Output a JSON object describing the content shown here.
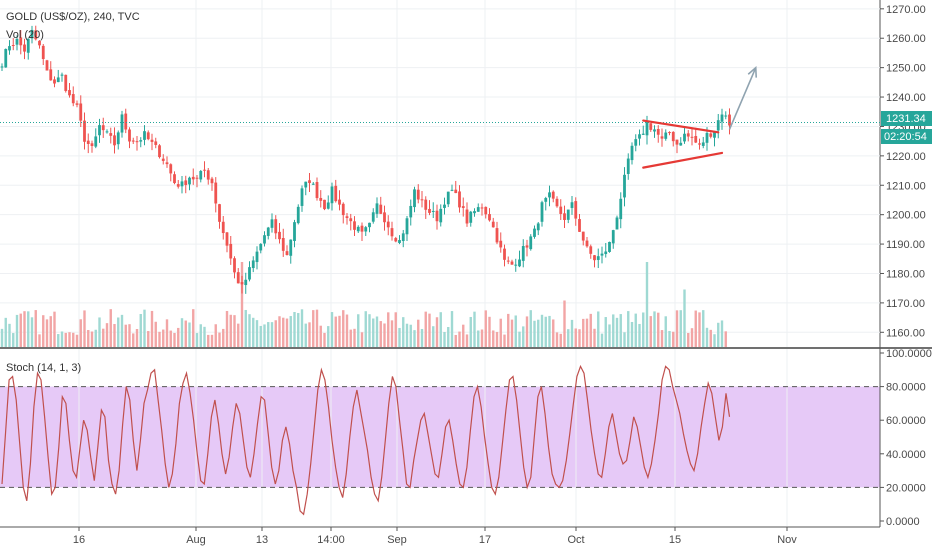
{
  "chart_data": [
    {
      "type": "candlestick",
      "title": "GOLD (US$/OZ), 240, TVC",
      "volume_label": "Vol (20)",
      "price_axis_ticks": [
        "1270.00",
        "1260.00",
        "1250.00",
        "1240.00",
        "1230.00",
        "1220.00",
        "1210.00",
        "1200.00",
        "1190.00",
        "1180.00",
        "1170.00",
        "1160.00"
      ],
      "ylim": [
        1155,
        1273
      ],
      "last_price": "1231.34",
      "countdown": "02:20:54",
      "x_tick_labels": [
        "16",
        "Aug",
        "13",
        "14:00",
        "Sep",
        "17",
        "Oct",
        "15",
        "Nov"
      ],
      "close_path_anchors": [
        [
          0,
          1252
        ],
        [
          2,
          1258
        ],
        [
          4,
          1259
        ],
        [
          6,
          1256
        ],
        [
          8,
          1262
        ],
        [
          10,
          1257
        ],
        [
          12,
          1248
        ],
        [
          14,
          1245
        ],
        [
          16,
          1247
        ],
        [
          18,
          1240
        ],
        [
          20,
          1236
        ],
        [
          22,
          1226
        ],
        [
          24,
          1222
        ],
        [
          26,
          1230
        ],
        [
          28,
          1227
        ],
        [
          30,
          1224
        ],
        [
          32,
          1233
        ],
        [
          34,
          1226
        ],
        [
          36,
          1225
        ],
        [
          38,
          1227
        ],
        [
          40,
          1224
        ],
        [
          42,
          1221
        ],
        [
          44,
          1217
        ],
        [
          46,
          1211
        ],
        [
          48,
          1210
        ],
        [
          50,
          1213
        ],
        [
          52,
          1212
        ],
        [
          54,
          1215
        ],
        [
          56,
          1211
        ],
        [
          58,
          1198
        ],
        [
          60,
          1190
        ],
        [
          62,
          1180
        ],
        [
          64,
          1175
        ],
        [
          66,
          1181
        ],
        [
          68,
          1187
        ],
        [
          70,
          1193
        ],
        [
          72,
          1197
        ],
        [
          74,
          1191
        ],
        [
          76,
          1186
        ],
        [
          78,
          1198
        ],
        [
          80,
          1208
        ],
        [
          82,
          1212
        ],
        [
          84,
          1207
        ],
        [
          86,
          1203
        ],
        [
          88,
          1208
        ],
        [
          90,
          1203
        ],
        [
          92,
          1199
        ],
        [
          94,
          1196
        ],
        [
          96,
          1193
        ],
        [
          98,
          1196
        ],
        [
          100,
          1203
        ],
        [
          102,
          1199
        ],
        [
          104,
          1194
        ],
        [
          106,
          1191
        ],
        [
          108,
          1198
        ],
        [
          110,
          1208
        ],
        [
          112,
          1204
        ],
        [
          114,
          1201
        ],
        [
          116,
          1199
        ],
        [
          118,
          1205
        ],
        [
          120,
          1208
        ],
        [
          122,
          1204
        ],
        [
          124,
          1198
        ],
        [
          126,
          1201
        ],
        [
          128,
          1203
        ],
        [
          130,
          1199
        ],
        [
          132,
          1192
        ],
        [
          134,
          1184
        ],
        [
          136,
          1183
        ],
        [
          138,
          1186
        ],
        [
          140,
          1190
        ],
        [
          142,
          1194
        ],
        [
          144,
          1203
        ],
        [
          146,
          1206
        ],
        [
          148,
          1202
        ],
        [
          150,
          1199
        ],
        [
          152,
          1203
        ],
        [
          154,
          1195
        ],
        [
          156,
          1188
        ],
        [
          158,
          1185
        ],
        [
          160,
          1186
        ],
        [
          162,
          1190
        ],
        [
          164,
          1200
        ],
        [
          166,
          1212
        ],
        [
          168,
          1223
        ],
        [
          170,
          1226
        ],
        [
          172,
          1231
        ],
        [
          174,
          1229
        ],
        [
          176,
          1225
        ],
        [
          178,
          1228
        ],
        [
          180,
          1224
        ],
        [
          182,
          1227
        ],
        [
          184,
          1226
        ],
        [
          186,
          1223
        ],
        [
          188,
          1227
        ],
        [
          190,
          1229
        ],
        [
          192,
          1235
        ],
        [
          194,
          1231
        ]
      ],
      "pattern": {
        "type": "symmetrical triangle",
        "upper_line": [
          [
            171,
            1232
          ],
          [
            191,
            1228
          ]
        ],
        "lower_line": [
          [
            171,
            1216
          ],
          [
            192,
            1221
          ]
        ],
        "projection_arrow": [
          [
            194,
            1229
          ],
          [
            201,
            1250
          ]
        ]
      },
      "volume_series": "bars under price, colored by candle direction",
      "volume_spikes": [
        [
          64,
          1.0
        ],
        [
          172,
          1.0
        ],
        [
          150,
          0.3
        ],
        [
          182,
          0.5
        ]
      ]
    },
    {
      "type": "line",
      "title": "Stoch (14, 1, 3)",
      "ylim": [
        0,
        100
      ],
      "y_tick_labels": [
        "100.0000",
        "80.0000",
        "60.0000",
        "40.0000",
        "20.0000",
        "0.0000"
      ],
      "overbought": 80,
      "oversold": 20,
      "band_color": "#e6c9f7",
      "line_color": "#c0504d",
      "x_tick_labels": [
        "16",
        "Aug",
        "13",
        "14:00",
        "Sep",
        "17",
        "Oct",
        "15",
        "Nov"
      ],
      "values": [
        22,
        52,
        84,
        86,
        72,
        46,
        20,
        12,
        34,
        68,
        88,
        84,
        62,
        38,
        16,
        20,
        44,
        74,
        70,
        48,
        30,
        26,
        44,
        60,
        54,
        38,
        24,
        44,
        66,
        62,
        36,
        22,
        16,
        30,
        58,
        80,
        72,
        48,
        30,
        48,
        70,
        78,
        88,
        90,
        72,
        54,
        34,
        20,
        28,
        46,
        70,
        82,
        88,
        76,
        60,
        40,
        24,
        22,
        40,
        62,
        72,
        58,
        40,
        28,
        38,
        56,
        70,
        64,
        48,
        32,
        26,
        40,
        58,
        74,
        72,
        52,
        32,
        22,
        30,
        48,
        56,
        46,
        30,
        20,
        6,
        4,
        16,
        34,
        56,
        78,
        90,
        84,
        68,
        48,
        32,
        20,
        14,
        28,
        50,
        68,
        78,
        66,
        54,
        42,
        26,
        16,
        12,
        26,
        48,
        70,
        86,
        80,
        60,
        42,
        22,
        20,
        36,
        48,
        60,
        64,
        52,
        40,
        28,
        26,
        40,
        56,
        60,
        48,
        34,
        22,
        20,
        32,
        54,
        74,
        80,
        68,
        50,
        34,
        20,
        16,
        26,
        46,
        66,
        84,
        86,
        72,
        52,
        32,
        20,
        26,
        50,
        74,
        80,
        64,
        44,
        28,
        22,
        20,
        24,
        36,
        52,
        70,
        86,
        92,
        88,
        72,
        54,
        40,
        28,
        26,
        40,
        56,
        64,
        52,
        40,
        34,
        36,
        48,
        62,
        56,
        44,
        32,
        26,
        34,
        48,
        64,
        84,
        92,
        90,
        80,
        72,
        64,
        52,
        42,
        34,
        30,
        40,
        56,
        70,
        82,
        76,
        62,
        48,
        56,
        76,
        62
      ]
    }
  ]
}
